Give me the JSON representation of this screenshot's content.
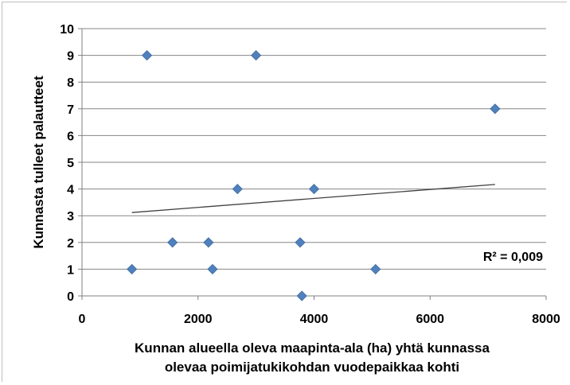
{
  "chart_data": {
    "type": "scatter",
    "title": "",
    "xlabel_lines": [
      "Kunnan alueella oleva maapinta-ala (ha) yhtä kunnassa",
      "olevaa poimijatukikohdan vuodepaikkaa kohti"
    ],
    "ylabel": "Kunnasta tulleet palautteet",
    "xlim": [
      0,
      8000
    ],
    "ylim": [
      0,
      10
    ],
    "x_ticks": [
      0,
      2000,
      4000,
      6000,
      8000
    ],
    "y_ticks": [
      0,
      1,
      2,
      3,
      4,
      5,
      6,
      7,
      8,
      9,
      10
    ],
    "grid": "horizontal",
    "legend": "none",
    "marker_color": "#4f81bd",
    "points": [
      {
        "x": 860,
        "y": 1
      },
      {
        "x": 1120,
        "y": 9
      },
      {
        "x": 1560,
        "y": 2
      },
      {
        "x": 2180,
        "y": 2
      },
      {
        "x": 2250,
        "y": 1
      },
      {
        "x": 2680,
        "y": 4
      },
      {
        "x": 3000,
        "y": 9
      },
      {
        "x": 3760,
        "y": 2
      },
      {
        "x": 3790,
        "y": 0
      },
      {
        "x": 4000,
        "y": 4
      },
      {
        "x": 5060,
        "y": 1
      },
      {
        "x": 7120,
        "y": 7
      }
    ],
    "trendline": {
      "x": [
        860,
        7120
      ],
      "y": [
        3.12,
        4.17
      ],
      "color": "#404040"
    },
    "r_squared_label": "R² = 0,009"
  }
}
